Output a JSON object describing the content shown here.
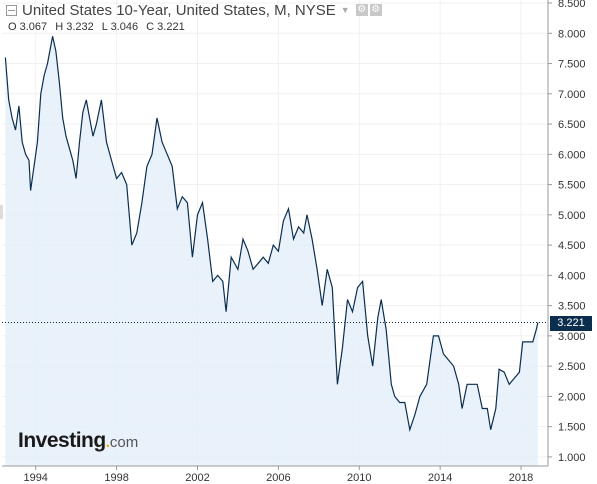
{
  "header": {
    "title": "United States 10-Year, United States, M, NYSE",
    "caret": "▼"
  },
  "ohlc": {
    "open": "O 3.067",
    "high": "H 3.232",
    "low": "L 3.046",
    "close": "C 3.221"
  },
  "last_price_label": "3.221",
  "logo": {
    "main": "Investing",
    "dot": ".",
    "com": "com"
  },
  "colors": {
    "line": "#0b2e4f",
    "area": "#e3effa",
    "grid": "#f0f0f0",
    "axis": "#999999",
    "badge": "#0b2e4f",
    "logo_dot": "#f4a100"
  },
  "chart_data": {
    "type": "area",
    "x_axis": {
      "type": "date",
      "ticks": [
        "1994",
        "1998",
        "2002",
        "2006",
        "2010",
        "2014",
        "2018"
      ]
    },
    "y_axis": {
      "ticks": [
        "1.000",
        "1.500",
        "2.000",
        "2.500",
        "3.000",
        "3.500",
        "4.000",
        "4.500",
        "5.000",
        "5.500",
        "6.000",
        "6.500",
        "7.000",
        "7.500",
        "8.000",
        "8.500"
      ],
      "range": [
        0.85,
        8.55
      ]
    },
    "last_value": 3.221,
    "series": [
      {
        "values": [
          [
            "1992-07",
            7.6
          ],
          [
            "1992-09",
            6.9
          ],
          [
            "1992-11",
            6.6
          ],
          [
            "1993-01",
            6.4
          ],
          [
            "1993-03",
            6.8
          ],
          [
            "1993-05",
            6.2
          ],
          [
            "1993-07",
            6.0
          ],
          [
            "1993-09",
            5.9
          ],
          [
            "1993-10",
            5.4
          ],
          [
            "1993-12",
            5.8
          ],
          [
            "1994-02",
            6.2
          ],
          [
            "1994-04",
            7.0
          ],
          [
            "1994-06",
            7.3
          ],
          [
            "1994-08",
            7.5
          ],
          [
            "1994-10",
            7.8
          ],
          [
            "1994-11",
            7.95
          ],
          [
            "1995-01",
            7.7
          ],
          [
            "1995-03",
            7.2
          ],
          [
            "1995-05",
            6.6
          ],
          [
            "1995-07",
            6.3
          ],
          [
            "1995-09",
            6.1
          ],
          [
            "1995-11",
            5.9
          ],
          [
            "1996-01",
            5.6
          ],
          [
            "1996-03",
            6.2
          ],
          [
            "1996-05",
            6.7
          ],
          [
            "1996-07",
            6.9
          ],
          [
            "1996-09",
            6.6
          ],
          [
            "1996-11",
            6.3
          ],
          [
            "1997-01",
            6.5
          ],
          [
            "1997-04",
            6.9
          ],
          [
            "1997-07",
            6.2
          ],
          [
            "1997-10",
            5.9
          ],
          [
            "1998-01",
            5.6
          ],
          [
            "1998-04",
            5.7
          ],
          [
            "1998-07",
            5.5
          ],
          [
            "1998-10",
            4.5
          ],
          [
            "1999-01",
            4.7
          ],
          [
            "1999-04",
            5.2
          ],
          [
            "1999-07",
            5.8
          ],
          [
            "1999-10",
            6.0
          ],
          [
            "2000-01",
            6.6
          ],
          [
            "2000-04",
            6.2
          ],
          [
            "2000-07",
            6.0
          ],
          [
            "2000-10",
            5.8
          ],
          [
            "2001-01",
            5.1
          ],
          [
            "2001-04",
            5.3
          ],
          [
            "2001-07",
            5.2
          ],
          [
            "2001-10",
            4.3
          ],
          [
            "2002-01",
            5.0
          ],
          [
            "2002-04",
            5.2
          ],
          [
            "2002-07",
            4.6
          ],
          [
            "2002-10",
            3.9
          ],
          [
            "2003-01",
            4.0
          ],
          [
            "2003-04",
            3.9
          ],
          [
            "2003-06",
            3.4
          ],
          [
            "2003-09",
            4.3
          ],
          [
            "2004-01",
            4.1
          ],
          [
            "2004-04",
            4.6
          ],
          [
            "2004-07",
            4.4
          ],
          [
            "2004-10",
            4.1
          ],
          [
            "2005-01",
            4.2
          ],
          [
            "2005-04",
            4.3
          ],
          [
            "2005-07",
            4.2
          ],
          [
            "2005-10",
            4.5
          ],
          [
            "2006-01",
            4.4
          ],
          [
            "2006-04",
            4.9
          ],
          [
            "2006-07",
            5.1
          ],
          [
            "2006-10",
            4.6
          ],
          [
            "2007-01",
            4.8
          ],
          [
            "2007-04",
            4.7
          ],
          [
            "2007-06",
            5.0
          ],
          [
            "2007-09",
            4.6
          ],
          [
            "2007-12",
            4.1
          ],
          [
            "2008-03",
            3.5
          ],
          [
            "2008-06",
            4.1
          ],
          [
            "2008-09",
            3.8
          ],
          [
            "2008-12",
            2.2
          ],
          [
            "2009-03",
            2.8
          ],
          [
            "2009-06",
            3.6
          ],
          [
            "2009-09",
            3.4
          ],
          [
            "2009-12",
            3.8
          ],
          [
            "2010-03",
            3.9
          ],
          [
            "2010-06",
            3.0
          ],
          [
            "2010-09",
            2.5
          ],
          [
            "2010-12",
            3.3
          ],
          [
            "2011-02",
            3.6
          ],
          [
            "2011-05",
            3.1
          ],
          [
            "2011-08",
            2.2
          ],
          [
            "2011-10",
            2.0
          ],
          [
            "2012-01",
            1.9
          ],
          [
            "2012-04",
            1.9
          ],
          [
            "2012-07",
            1.45
          ],
          [
            "2012-10",
            1.7
          ],
          [
            "2013-01",
            2.0
          ],
          [
            "2013-05",
            2.2
          ],
          [
            "2013-09",
            3.0
          ],
          [
            "2013-12",
            3.0
          ],
          [
            "2014-03",
            2.7
          ],
          [
            "2014-06",
            2.6
          ],
          [
            "2014-09",
            2.5
          ],
          [
            "2014-12",
            2.2
          ],
          [
            "2015-02",
            1.8
          ],
          [
            "2015-05",
            2.2
          ],
          [
            "2015-08",
            2.2
          ],
          [
            "2015-11",
            2.2
          ],
          [
            "2016-02",
            1.8
          ],
          [
            "2016-05",
            1.8
          ],
          [
            "2016-07",
            1.45
          ],
          [
            "2016-10",
            1.8
          ],
          [
            "2016-12",
            2.45
          ],
          [
            "2017-03",
            2.4
          ],
          [
            "2017-06",
            2.2
          ],
          [
            "2017-09",
            2.3
          ],
          [
            "2017-12",
            2.4
          ],
          [
            "2018-02",
            2.9
          ],
          [
            "2018-05",
            2.9
          ],
          [
            "2018-08",
            2.9
          ],
          [
            "2018-10",
            3.1
          ],
          [
            "2018-11",
            3.221
          ]
        ]
      }
    ]
  }
}
